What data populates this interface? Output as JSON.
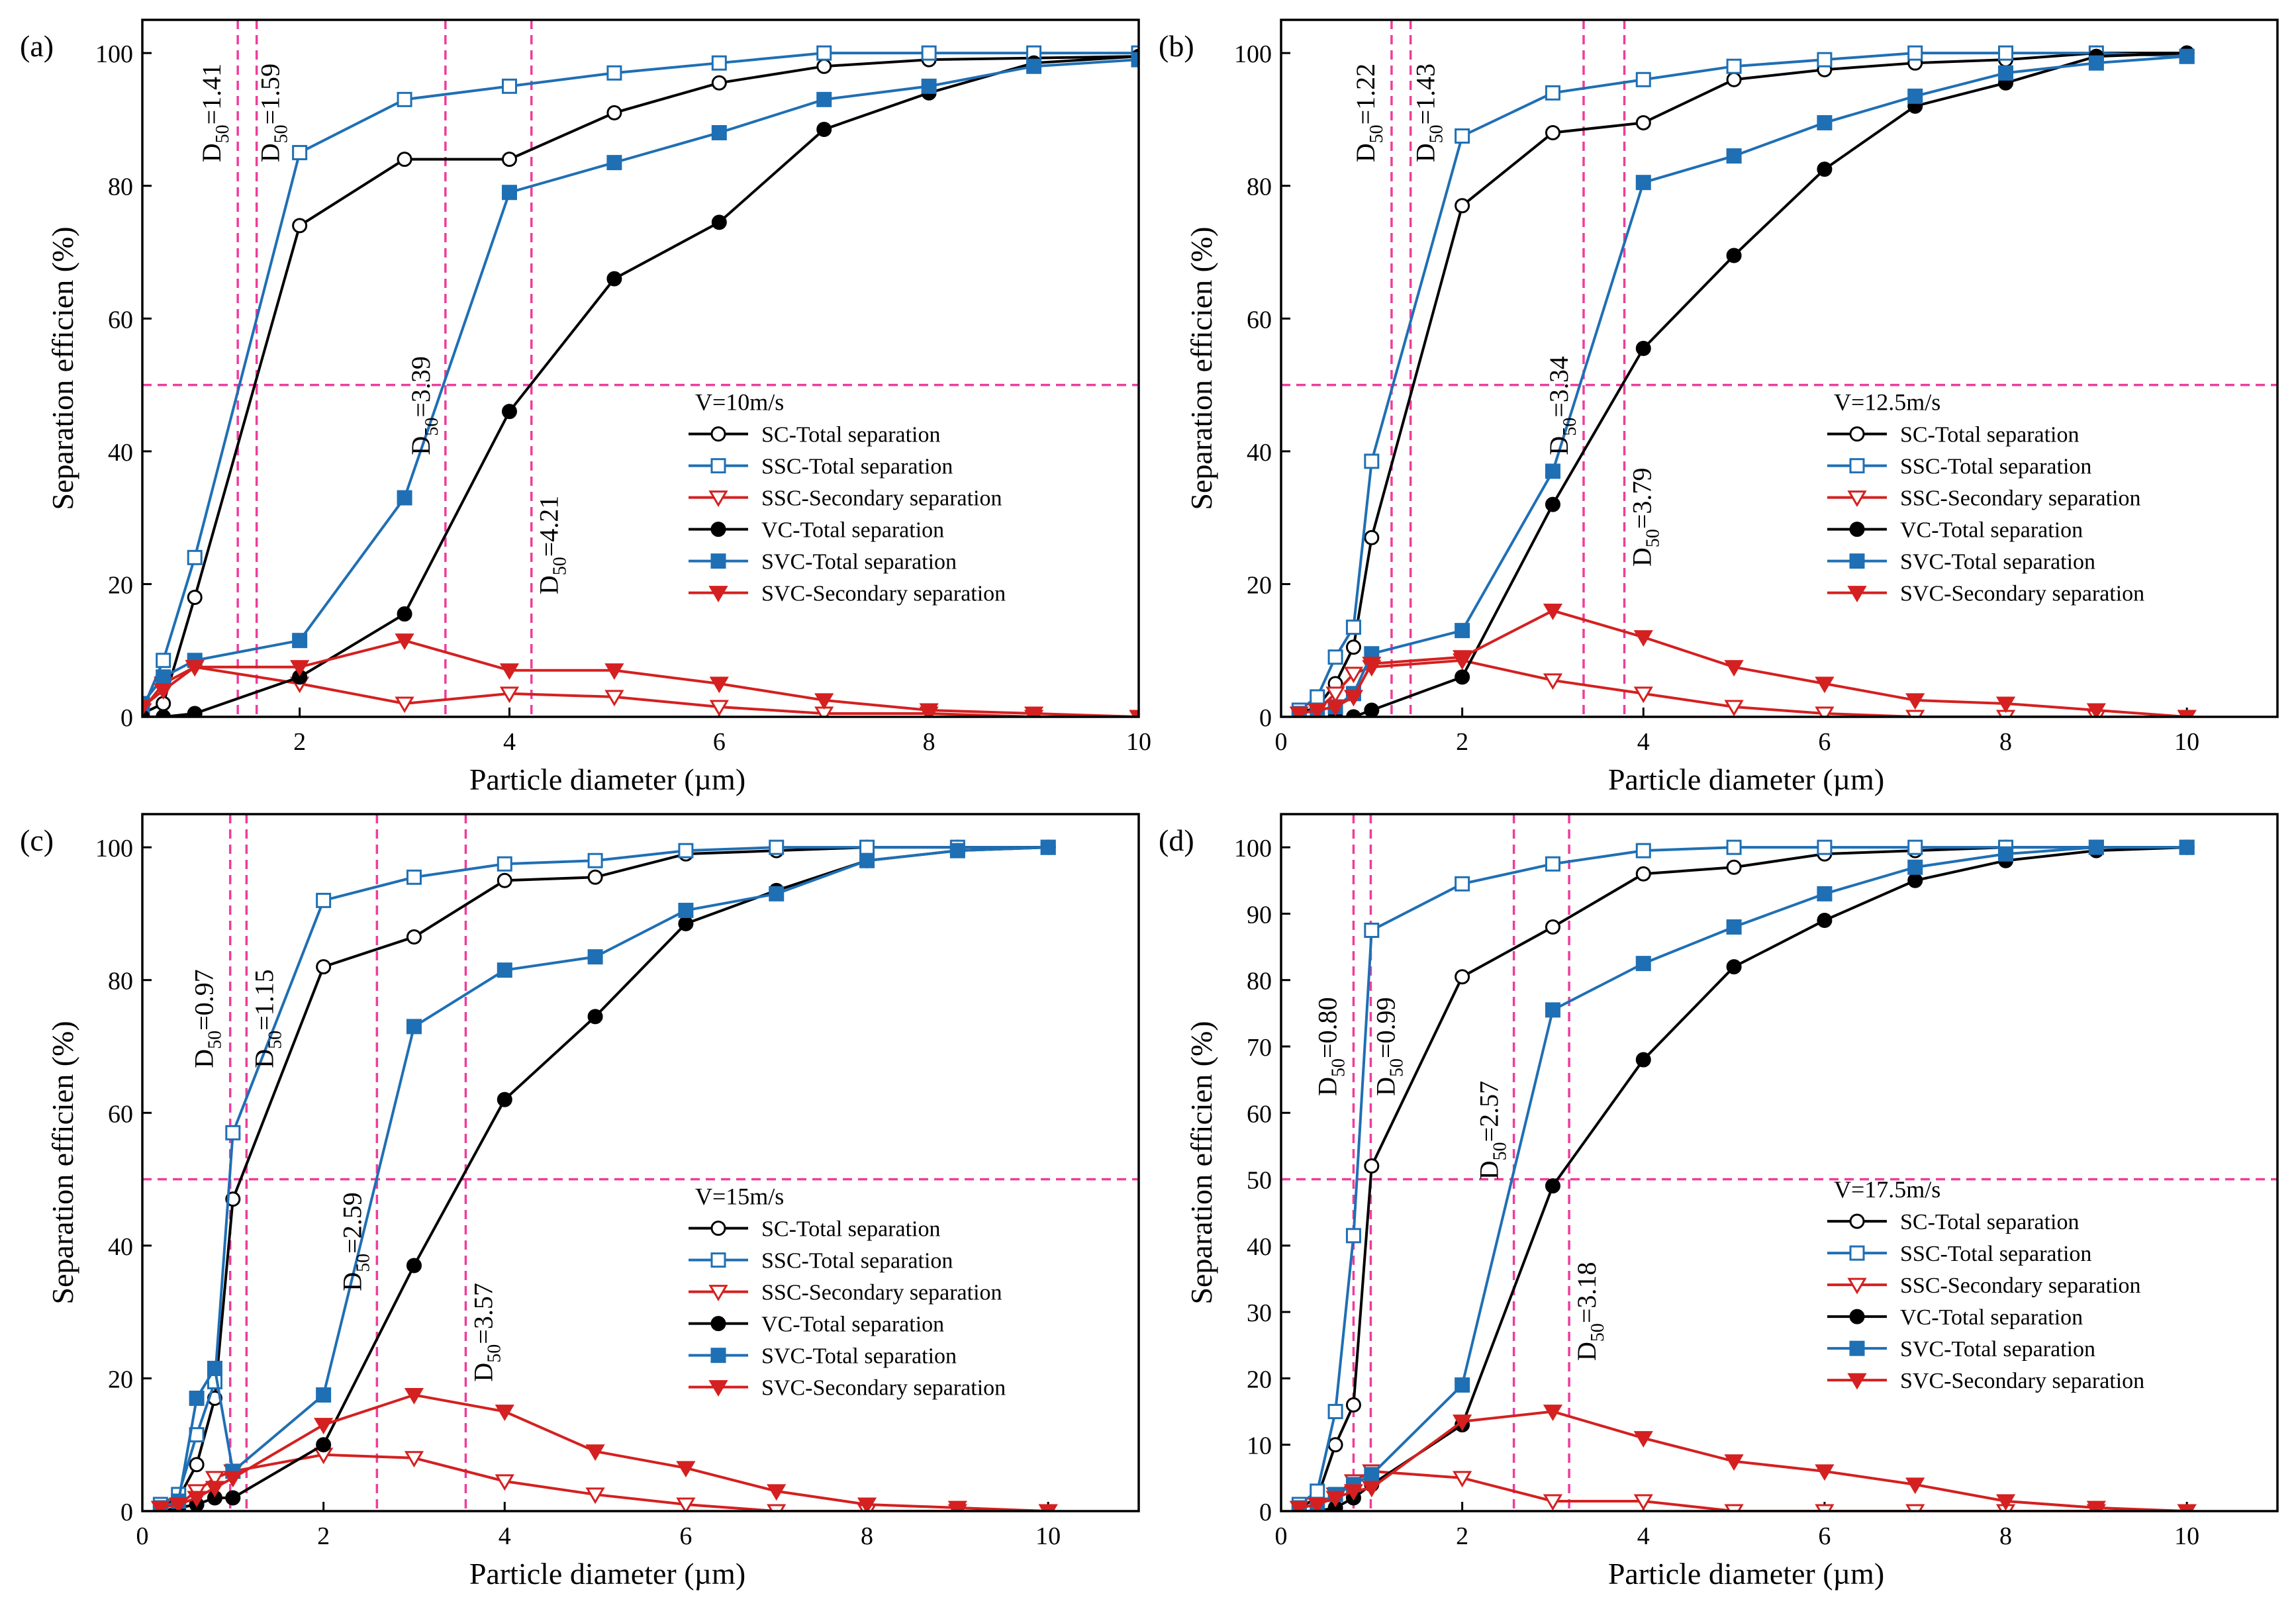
{
  "figure": {
    "series_legend": [
      "SC-Total separation",
      "SSC-Total separation",
      "SSC-Secondary separation",
      "VC-Total separation",
      "SVC-Total separation",
      "SVC-Secondary separation"
    ],
    "colors": {
      "black": "#000000",
      "blue": "#1f6fb4",
      "red": "#d42020",
      "magenta": "#ee3d9c"
    }
  },
  "chart_data": [
    {
      "panel_label": "(a)",
      "type": "line",
      "xlabel": "Particle diameter (µm)",
      "ylabel": "Separation efficien (%)",
      "xlim": [
        0.5,
        10
      ],
      "ylim": [
        0,
        105
      ],
      "xticks": [
        2,
        4,
        6,
        8,
        10
      ],
      "yticks": [
        0,
        20,
        40,
        60,
        80,
        100
      ],
      "legend_title": "V=10m/s",
      "hline": 50,
      "d50": [
        {
          "x": 1.41,
          "label_sub": "50",
          "label_val": "=1.41"
        },
        {
          "x": 1.59,
          "label_sub": "50",
          "label_val": "=1.59"
        },
        {
          "x": 3.39,
          "label_sub": "50",
          "label_val": "=3.39"
        },
        {
          "x": 4.21,
          "label_sub": "50",
          "label_val": "=4.21"
        }
      ],
      "series": [
        {
          "name": "SC-Total separation",
          "x": [
            0.5,
            0.7,
            1,
            2,
            3,
            4,
            5,
            6,
            7,
            8,
            10
          ],
          "y": [
            0.5,
            2,
            18,
            74,
            84,
            84,
            91,
            95.5,
            98,
            99,
            99.5
          ]
        },
        {
          "name": "SSC-Total separation",
          "x": [
            0.5,
            0.7,
            1,
            2,
            3,
            4,
            5,
            6,
            7,
            8,
            9,
            10
          ],
          "y": [
            1,
            8.5,
            24,
            85,
            93,
            95,
            97,
            98.5,
            100,
            100,
            100,
            100
          ]
        },
        {
          "name": "SSC-Secondary separation",
          "x": [
            0.5,
            0.7,
            1,
            2,
            3,
            4,
            5,
            6,
            7,
            8,
            9,
            10
          ],
          "y": [
            1,
            5,
            7.5,
            5,
            2,
            3.5,
            3,
            1.5,
            0.5,
            0.5,
            0,
            0
          ]
        },
        {
          "name": "VC-Total separation",
          "x": [
            0.5,
            0.7,
            1,
            2,
            3,
            4,
            5,
            6,
            7,
            8,
            9,
            10
          ],
          "y": [
            0,
            0,
            0.5,
            6,
            15.5,
            46,
            66,
            74.5,
            88.5,
            94,
            98.5,
            99.5
          ]
        },
        {
          "name": "SVC-Total separation",
          "x": [
            0.5,
            0.7,
            1,
            2,
            3,
            4,
            5,
            6,
            7,
            8,
            9,
            10
          ],
          "y": [
            2,
            6,
            8.5,
            11.5,
            33,
            79,
            83.5,
            88,
            93,
            95,
            98,
            99
          ]
        },
        {
          "name": "SVC-Secondary separation",
          "x": [
            0.5,
            0.7,
            1,
            2,
            3,
            4,
            5,
            6,
            7,
            8,
            9,
            10
          ],
          "y": [
            1.5,
            4,
            7.5,
            7.5,
            11.5,
            7,
            7,
            5,
            2.5,
            1,
            0.5,
            0
          ]
        }
      ]
    },
    {
      "panel_label": "(b)",
      "type": "line",
      "xlabel": "Particle diameter (µm)",
      "ylabel": "Separation efficien (%)",
      "xlim": [
        0,
        11
      ],
      "ylim": [
        0,
        105
      ],
      "xticks": [
        0,
        2,
        4,
        6,
        8,
        10
      ],
      "yticks": [
        0,
        20,
        40,
        60,
        80,
        100
      ],
      "legend_title": "V=12.5m/s",
      "hline": 50,
      "d50": [
        {
          "x": 1.22,
          "label_sub": "50",
          "label_val": "=1.22"
        },
        {
          "x": 1.43,
          "label_sub": "50",
          "label_val": "=1.43"
        },
        {
          "x": 3.34,
          "label_sub": "50",
          "label_val": "=3.34"
        },
        {
          "x": 3.79,
          "label_sub": "50",
          "label_val": "=3.79"
        }
      ],
      "series": [
        {
          "name": "SC-Total separation",
          "x": [
            0.2,
            0.4,
            0.6,
            0.8,
            1,
            2,
            3,
            4,
            5,
            6,
            7,
            8,
            9,
            10
          ],
          "y": [
            0.5,
            1.5,
            5,
            10.5,
            27,
            77,
            88,
            89.5,
            96,
            97.5,
            98.5,
            99,
            100,
            100
          ]
        },
        {
          "name": "SSC-Total separation",
          "x": [
            0.2,
            0.4,
            0.6,
            0.8,
            1,
            2,
            3,
            4,
            5,
            6,
            7,
            8,
            9,
            10
          ],
          "y": [
            1,
            3,
            9,
            13.5,
            38.5,
            87.5,
            94,
            96,
            98,
            99,
            100,
            100,
            100,
            99.5
          ]
        },
        {
          "name": "SSC-Secondary separation",
          "x": [
            0.2,
            0.4,
            0.6,
            0.8,
            1,
            2,
            3,
            4,
            5,
            6,
            7,
            8,
            9,
            10
          ],
          "y": [
            0.5,
            1,
            3.5,
            6.5,
            7.5,
            8.5,
            5.5,
            3.5,
            1.5,
            0.5,
            0,
            0,
            0,
            0
          ]
        },
        {
          "name": "VC-Total separation",
          "x": [
            0.2,
            0.4,
            0.6,
            0.8,
            1,
            2,
            3,
            4,
            5,
            6,
            7,
            8,
            9,
            10
          ],
          "y": [
            0,
            0,
            0,
            0,
            1,
            6,
            32,
            55.5,
            69.5,
            82.5,
            92,
            95.5,
            99.5,
            100
          ]
        },
        {
          "name": "SVC-Total separation",
          "x": [
            0.2,
            0.4,
            0.6,
            0.8,
            1,
            2,
            3,
            4,
            5,
            6,
            7,
            8,
            9,
            10
          ],
          "y": [
            0.5,
            1,
            1.5,
            3.5,
            9.5,
            13,
            37,
            80.5,
            84.5,
            89.5,
            93.5,
            97,
            98.5,
            99.5
          ]
        },
        {
          "name": "SVC-Secondary separation",
          "x": [
            0.2,
            0.4,
            0.6,
            0.8,
            1,
            2,
            3,
            4,
            5,
            6,
            7,
            8,
            9,
            10
          ],
          "y": [
            0.5,
            1,
            1.5,
            3,
            8,
            9,
            16,
            12,
            7.5,
            5,
            2.5,
            2,
            1,
            0
          ]
        }
      ]
    },
    {
      "panel_label": "(c)",
      "type": "line",
      "xlabel": "Particle diameter (µm)",
      "ylabel": "Separation efficien (%)",
      "xlim": [
        0,
        11
      ],
      "ylim": [
        0,
        105
      ],
      "xticks": [
        0,
        2,
        4,
        6,
        8,
        10
      ],
      "yticks": [
        0,
        20,
        40,
        60,
        80,
        100
      ],
      "legend_title": "V=15m/s",
      "hline": 50,
      "d50": [
        {
          "x": 0.97,
          "label_sub": "50",
          "label_val": "=0.97"
        },
        {
          "x": 1.15,
          "label_sub": "50",
          "label_val": "=1.15"
        },
        {
          "x": 2.59,
          "label_sub": "50",
          "label_val": "=2.59"
        },
        {
          "x": 3.57,
          "label_sub": "50",
          "label_val": "=3.57"
        }
      ],
      "series": [
        {
          "name": "SC-Total separation",
          "x": [
            0.2,
            0.4,
            0.6,
            0.8,
            1,
            2,
            3,
            4,
            5,
            6,
            7,
            8,
            9,
            10
          ],
          "y": [
            0.5,
            2,
            7,
            17,
            47,
            82,
            86.5,
            95,
            95.5,
            99,
            99.5,
            100,
            100,
            100
          ]
        },
        {
          "name": "SSC-Total separation",
          "x": [
            0.2,
            0.4,
            0.6,
            0.8,
            1,
            2,
            3,
            4,
            5,
            6,
            7,
            8,
            9,
            10
          ],
          "y": [
            1,
            2.5,
            11.5,
            19.5,
            57,
            92,
            95.5,
            97.5,
            98,
            99.5,
            100,
            100,
            100,
            100
          ]
        },
        {
          "name": "SSC-Secondary separation",
          "x": [
            0.2,
            0.4,
            0.6,
            0.8,
            1,
            2,
            3,
            4,
            5,
            6,
            7,
            8,
            9,
            10
          ],
          "y": [
            0.5,
            1,
            3,
            5,
            6,
            8.5,
            8,
            4.5,
            2.5,
            1,
            0,
            0,
            0,
            0
          ]
        },
        {
          "name": "VC-Total separation",
          "x": [
            0.2,
            0.4,
            0.6,
            0.8,
            1,
            2,
            3,
            4,
            5,
            6,
            7,
            8,
            9,
            10
          ],
          "y": [
            0,
            0.5,
            1,
            2,
            2,
            10,
            37,
            62,
            74.5,
            88.5,
            93.5,
            98,
            99.5,
            100
          ]
        },
        {
          "name": "SVC-Total separation",
          "x": [
            0.2,
            0.4,
            0.6,
            0.8,
            1,
            2,
            3,
            4,
            5,
            6,
            7,
            8,
            9,
            10
          ],
          "y": [
            0.5,
            1.5,
            17,
            21.5,
            6,
            17.5,
            73,
            81.5,
            83.5,
            90.5,
            93,
            98,
            99.5,
            100
          ]
        },
        {
          "name": "SVC-Secondary separation",
          "x": [
            0.2,
            0.4,
            0.6,
            0.8,
            1,
            2,
            3,
            4,
            5,
            6,
            7,
            8,
            9,
            10
          ],
          "y": [
            0.5,
            1,
            2,
            3.5,
            5,
            13,
            17.5,
            15,
            9,
            6.5,
            3,
            1,
            0.5,
            0
          ]
        }
      ]
    },
    {
      "panel_label": "(d)",
      "type": "line",
      "xlabel": "Particle diameter (µm)",
      "ylabel": "Separation efficien (%)",
      "xlim": [
        0,
        11
      ],
      "ylim": [
        0,
        105
      ],
      "xticks": [
        0,
        2,
        4,
        6,
        8,
        10
      ],
      "yticks": [
        0,
        10,
        20,
        30,
        40,
        50,
        60,
        70,
        80,
        90,
        100
      ],
      "legend_title": "V=17.5m/s",
      "hline": 50,
      "d50": [
        {
          "x": 0.8,
          "label_sub": "50",
          "label_val": "=0.80"
        },
        {
          "x": 0.99,
          "label_sub": "50",
          "label_val": "=0.99"
        },
        {
          "x": 2.57,
          "label_sub": "50",
          "label_val": "=2.57"
        },
        {
          "x": 3.18,
          "label_sub": "50",
          "label_val": "=3.18"
        }
      ],
      "series": [
        {
          "name": "SC-Total separation",
          "x": [
            0.2,
            0.4,
            0.6,
            0.8,
            1,
            2,
            3,
            4,
            5,
            6,
            7,
            8,
            9,
            10
          ],
          "y": [
            0.5,
            2,
            10,
            16,
            52,
            80.5,
            88,
            96,
            97,
            99,
            99.5,
            100,
            100,
            100
          ]
        },
        {
          "name": "SSC-Total separation",
          "x": [
            0.2,
            0.4,
            0.6,
            0.8,
            1,
            2,
            3,
            4,
            5,
            6,
            7,
            8,
            9,
            10
          ],
          "y": [
            1,
            3,
            15,
            41.5,
            87.5,
            94.5,
            97.5,
            99.5,
            100,
            100,
            100,
            100,
            100,
            100
          ]
        },
        {
          "name": "SSC-Secondary separation",
          "x": [
            0.2,
            0.4,
            0.6,
            0.8,
            1,
            2,
            3,
            4,
            5,
            6,
            7,
            8,
            9,
            10
          ],
          "y": [
            0.5,
            1,
            2.5,
            4.5,
            6,
            5,
            1.5,
            1.5,
            0,
            0,
            0,
            0,
            0,
            0
          ]
        },
        {
          "name": "VC-Total separation",
          "x": [
            0.2,
            0.4,
            0.6,
            0.8,
            1,
            2,
            3,
            4,
            5,
            6,
            7,
            8,
            9,
            10
          ],
          "y": [
            0,
            0,
            0.5,
            2,
            4,
            13,
            49,
            68,
            82,
            89,
            95,
            98,
            99.5,
            100
          ]
        },
        {
          "name": "SVC-Total separation",
          "x": [
            0.2,
            0.4,
            0.6,
            0.8,
            1,
            2,
            3,
            4,
            5,
            6,
            7,
            8,
            9,
            10
          ],
          "y": [
            0.5,
            1,
            2.5,
            4,
            5.5,
            19,
            75.5,
            82.5,
            88,
            93,
            97,
            99,
            100,
            100
          ]
        },
        {
          "name": "SVC-Secondary separation",
          "x": [
            0.2,
            0.4,
            0.6,
            0.8,
            1,
            2,
            3,
            4,
            5,
            6,
            7,
            8,
            9,
            10
          ],
          "y": [
            0.5,
            1,
            2,
            3,
            3.5,
            13.5,
            15,
            11,
            7.5,
            6,
            4,
            1.5,
            0.5,
            0
          ]
        }
      ]
    }
  ]
}
